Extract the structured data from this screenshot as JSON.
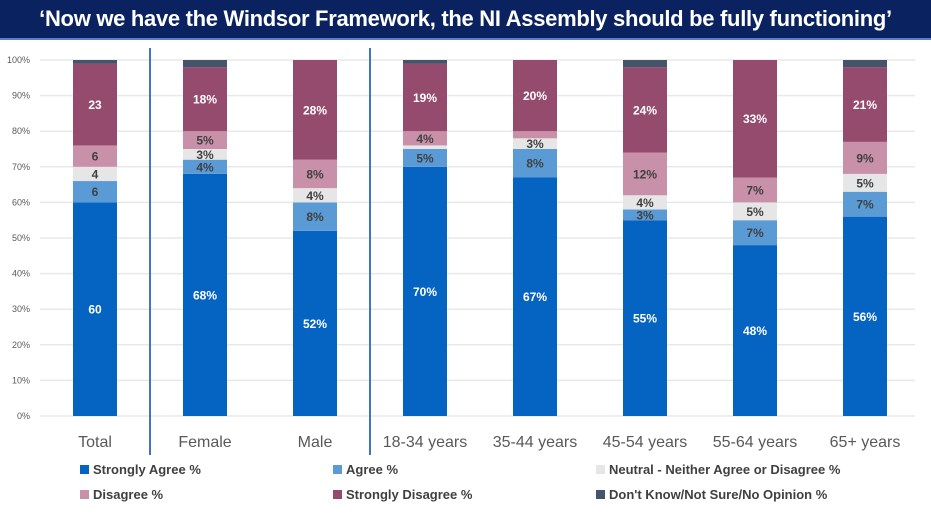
{
  "title": "‘Now we have the Windsor Framework, the NI Assembly should be fully functioning’",
  "chart_data": {
    "type": "bar",
    "stacked": true,
    "title": "‘Now we have the Windsor Framework, the NI Assembly should be fully functioning’",
    "xlabel": "",
    "ylabel": "",
    "ylim": [
      0,
      100
    ],
    "yticks": [
      "0%",
      "10%",
      "20%",
      "30%",
      "40%",
      "50%",
      "60%",
      "70%",
      "80%",
      "90%",
      "100%"
    ],
    "grid": true,
    "legend_position": "bottom",
    "categories": [
      "Total",
      "Female",
      "Male",
      "18-34 years",
      "35-44 years",
      "45-54 years",
      "55-64 years",
      "65+ years"
    ],
    "group_separators_after": [
      "Total",
      "Male"
    ],
    "series": [
      {
        "name": "Strongly Agree %",
        "color": "#0563c1",
        "label_color": "#ffffff",
        "values": [
          60,
          68,
          52,
          70,
          67,
          55,
          48,
          56
        ],
        "labels": [
          "60",
          "68%",
          "52%",
          "70%",
          "67%",
          "55%",
          "48%",
          "56%"
        ]
      },
      {
        "name": "Agree %",
        "color": "#5b9bd5",
        "label_color": "#404040",
        "values": [
          6,
          4,
          8,
          5,
          8,
          3,
          7,
          7
        ],
        "labels": [
          "6",
          "4%",
          "8%",
          "5%",
          "8%",
          "3%",
          "7%",
          "7%"
        ]
      },
      {
        "name": "Neutral - Neither Agree or Disagree %",
        "color": "#e7e6e6",
        "label_color": "#404040",
        "values": [
          4,
          3,
          4,
          1,
          3,
          4,
          5,
          5
        ],
        "labels": [
          "4",
          "3%",
          "4%",
          "",
          "3%",
          "4%",
          "5%",
          "5%"
        ]
      },
      {
        "name": "Disagree %",
        "color": "#c990aa",
        "label_color": "#404040",
        "values": [
          6,
          5,
          8,
          4,
          2,
          12,
          7,
          9
        ],
        "labels": [
          "6",
          "5%",
          "8%",
          "4%",
          "",
          "12%",
          "7%",
          "9%"
        ]
      },
      {
        "name": "Strongly Disagree %",
        "color": "#944b6e",
        "label_color": "#ffffff",
        "values": [
          23,
          18,
          28,
          19,
          20,
          24,
          33,
          21
        ],
        "labels": [
          "23",
          "18%",
          "28%",
          "19%",
          "20%",
          "24%",
          "33%",
          "21%"
        ]
      },
      {
        "name": "Don't Know/Not Sure/No Opinion %",
        "color": "#44546a",
        "label_color": "#ffffff",
        "values": [
          1,
          2,
          0,
          1,
          0,
          2,
          0,
          2
        ],
        "labels": [
          "",
          "",
          "",
          "",
          "",
          "",
          "",
          ""
        ]
      }
    ]
  },
  "colors": {
    "title_bg": "#0b2260",
    "separator": "#4472c4",
    "grid": "#e8e8e8"
  }
}
